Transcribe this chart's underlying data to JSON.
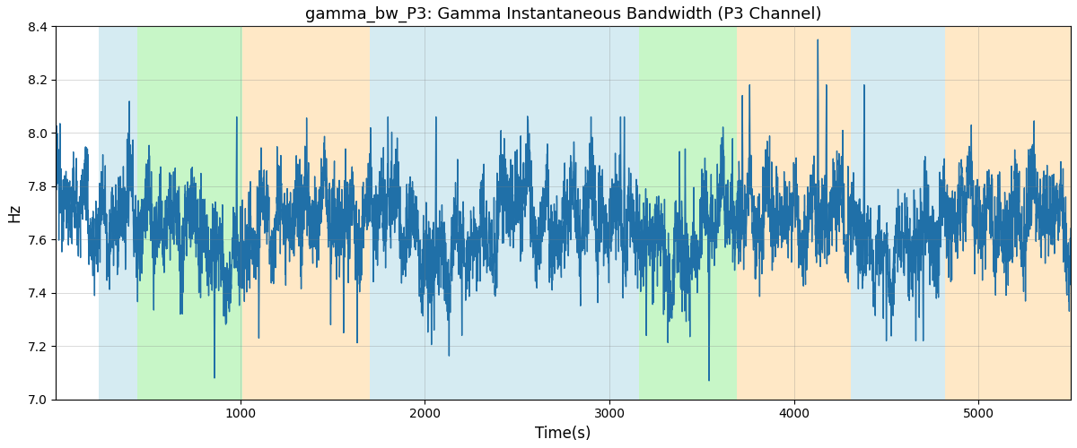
{
  "title": "gamma_bw_P3: Gamma Instantaneous Bandwidth (P3 Channel)",
  "xlabel": "Time(s)",
  "ylabel": "Hz",
  "xlim": [
    0,
    5500
  ],
  "ylim": [
    7.0,
    8.4
  ],
  "yticks": [
    7.0,
    7.2,
    7.4,
    7.6,
    7.8,
    8.0,
    8.2,
    8.4
  ],
  "xticks": [
    1000,
    2000,
    3000,
    4000,
    5000
  ],
  "line_color": "#2070a8",
  "line_width": 1.0,
  "bg_regions": [
    {
      "xstart": 230,
      "xend": 440,
      "color": "#add8e6",
      "alpha": 0.5
    },
    {
      "xstart": 440,
      "xend": 1010,
      "color": "#90ee90",
      "alpha": 0.5
    },
    {
      "xstart": 1010,
      "xend": 1700,
      "color": "#ffd9a0",
      "alpha": 0.6
    },
    {
      "xstart": 1700,
      "xend": 3070,
      "color": "#add8e6",
      "alpha": 0.5
    },
    {
      "xstart": 3070,
      "xend": 3160,
      "color": "#add8e6",
      "alpha": 0.5
    },
    {
      "xstart": 3160,
      "xend": 3690,
      "color": "#90ee90",
      "alpha": 0.5
    },
    {
      "xstart": 3690,
      "xend": 4310,
      "color": "#ffd9a0",
      "alpha": 0.6
    },
    {
      "xstart": 4310,
      "xend": 4820,
      "color": "#add8e6",
      "alpha": 0.5
    },
    {
      "xstart": 4820,
      "xend": 5600,
      "color": "#ffd9a0",
      "alpha": 0.6
    }
  ],
  "seed": 12345,
  "n_points": 5400,
  "base_freq": 7.65
}
